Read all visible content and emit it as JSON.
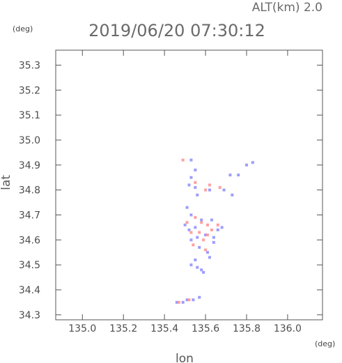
{
  "header": {
    "altitude_label": "ALT(km) 2.0",
    "timestamp": "2019/06/20 07:30:12",
    "y_unit": "(deg)",
    "x_unit": "(deg)"
  },
  "chart_data": {
    "type": "scatter",
    "title": "2019/06/20 07:30:12",
    "subtitle": "ALT(km) 2.0",
    "xlabel": "lon",
    "ylabel": "lat",
    "x_unit": "(deg)",
    "y_unit": "(deg)",
    "xlim": [
      134.87,
      136.17
    ],
    "ylim": [
      34.28,
      35.36
    ],
    "x_ticks": [
      "135.0",
      "135.2",
      "135.4",
      "135.6",
      "135.8",
      "136.0"
    ],
    "y_ticks": [
      "34.3",
      "34.4",
      "34.5",
      "34.6",
      "34.7",
      "34.8",
      "34.9",
      "35.0",
      "35.1",
      "35.2",
      "35.3"
    ],
    "grid": false,
    "colors": {
      "positive": "#ff8f8f",
      "negative": "#8c8cff"
    },
    "series": [
      {
        "color": "#8c8cff",
        "points": [
          [
            135.53,
            34.92
          ],
          [
            135.55,
            34.88
          ],
          [
            135.53,
            34.85
          ],
          [
            135.52,
            34.82
          ],
          [
            135.55,
            34.81
          ],
          [
            135.56,
            34.78
          ],
          [
            135.62,
            34.8
          ],
          [
            135.69,
            34.8
          ],
          [
            135.72,
            34.86
          ],
          [
            135.76,
            34.86
          ],
          [
            135.8,
            34.9
          ],
          [
            135.83,
            34.91
          ],
          [
            135.73,
            34.78
          ],
          [
            135.51,
            34.73
          ],
          [
            135.53,
            34.7
          ],
          [
            135.58,
            34.68
          ],
          [
            135.5,
            34.66
          ],
          [
            135.52,
            34.64
          ],
          [
            135.55,
            34.65
          ],
          [
            135.6,
            34.62
          ],
          [
            135.64,
            34.61
          ],
          [
            135.66,
            34.64
          ],
          [
            135.53,
            34.6
          ],
          [
            135.57,
            34.57
          ],
          [
            135.61,
            34.55
          ],
          [
            135.55,
            34.52
          ],
          [
            135.53,
            34.5
          ],
          [
            135.56,
            34.49
          ],
          [
            135.58,
            34.48
          ],
          [
            135.59,
            34.47
          ],
          [
            135.62,
            34.53
          ],
          [
            135.64,
            34.59
          ],
          [
            135.46,
            34.35
          ],
          [
            135.49,
            34.35
          ],
          [
            135.51,
            34.36
          ],
          [
            135.54,
            34.36
          ],
          [
            135.57,
            34.37
          ],
          [
            135.68,
            34.65
          ],
          [
            135.63,
            34.68
          ],
          [
            135.56,
            34.61
          ]
        ]
      },
      {
        "color": "#ff8f8f",
        "points": [
          [
            135.49,
            34.92
          ],
          [
            135.55,
            34.83
          ],
          [
            135.62,
            34.82
          ],
          [
            135.6,
            34.8
          ],
          [
            135.67,
            34.81
          ],
          [
            135.51,
            34.67
          ],
          [
            135.55,
            34.69
          ],
          [
            135.58,
            34.67
          ],
          [
            135.61,
            34.66
          ],
          [
            135.66,
            34.66
          ],
          [
            135.63,
            34.64
          ],
          [
            135.53,
            34.63
          ],
          [
            135.57,
            34.63
          ],
          [
            135.61,
            34.62
          ],
          [
            135.59,
            34.6
          ],
          [
            135.54,
            34.58
          ],
          [
            135.6,
            34.56
          ],
          [
            135.47,
            34.35
          ],
          [
            135.52,
            34.36
          ]
        ]
      }
    ]
  }
}
